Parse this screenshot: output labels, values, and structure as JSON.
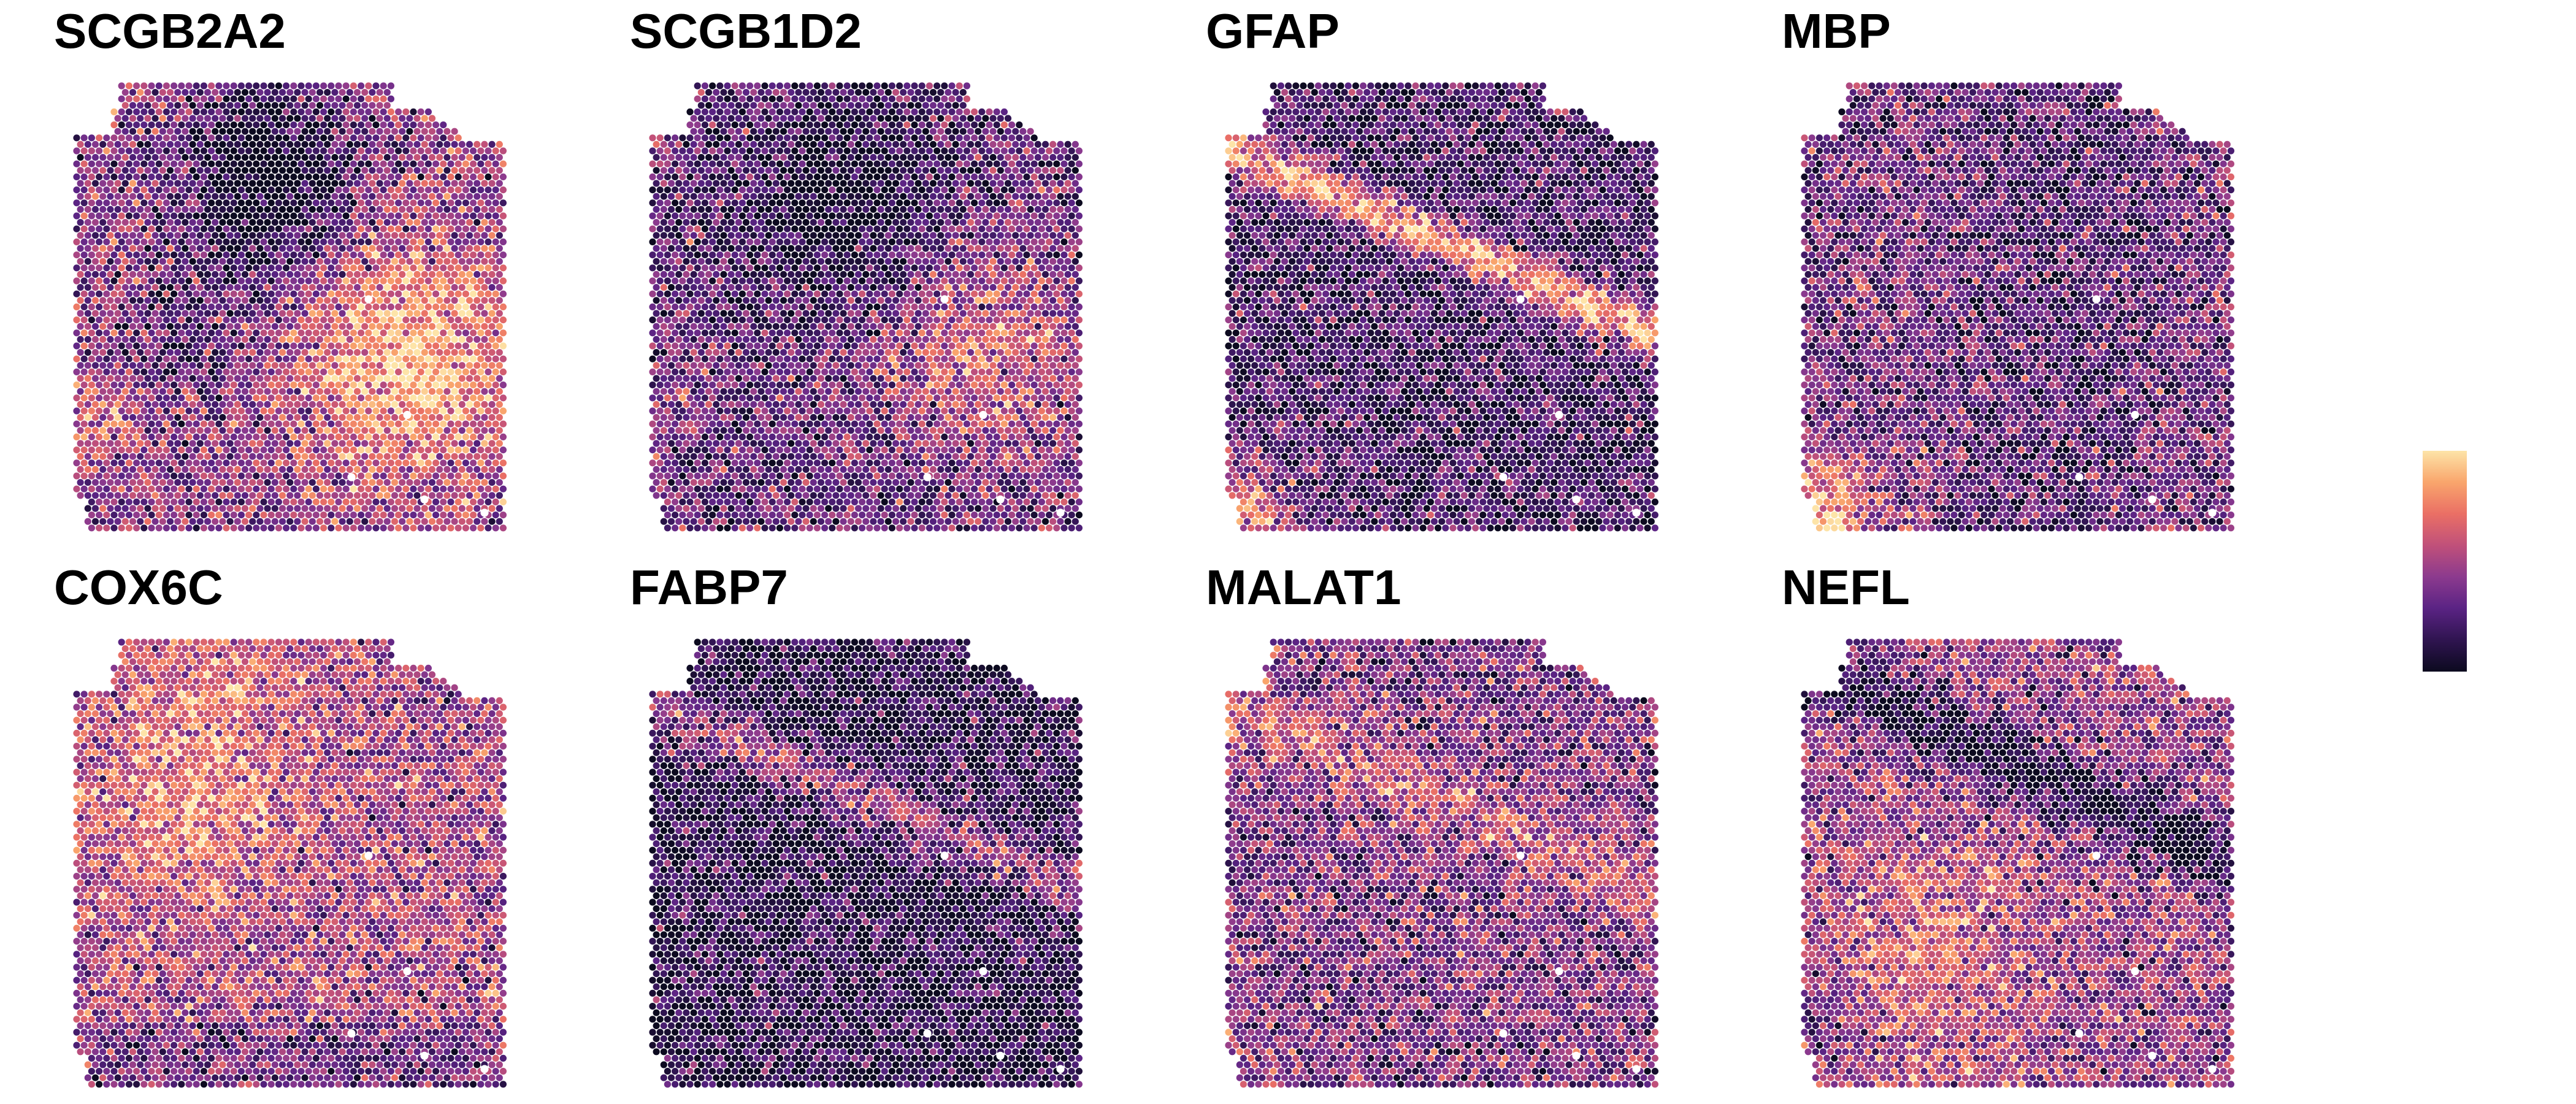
{
  "chart_data": {
    "type": "heatmap",
    "subtype": "spatial-spot-expression-facets",
    "layout": {
      "rows": 2,
      "cols": 4
    },
    "colormap": [
      "#0c0a1f",
      "#2f1450",
      "#5a2384",
      "#8c3a8e",
      "#c0507a",
      "#ea6f65",
      "#f9a56c",
      "#fde4a8"
    ],
    "colorbar": {
      "orientation": "vertical",
      "ticks": "none"
    },
    "value_scale": "relative expression 0-1 (unlabeled)",
    "panels": [
      {
        "title": "SCGB2A2",
        "pattern": "High in lower-right and lower-left regions; low dark band across the upper area."
      },
      {
        "title": "SCGB1D2",
        "pattern": "Moderate in lower-right region; dark across upper-middle area."
      },
      {
        "title": "GFAP",
        "pattern": "Bright diagonal band from upper-left to right; bright lower-left corner."
      },
      {
        "title": "MBP",
        "pattern": "Mostly low-moderate; bright lower-left corner."
      },
      {
        "title": "COX6C",
        "pattern": "Broadly moderate-high, highest in upper-left and middle-left areas."
      },
      {
        "title": "FABP7",
        "pattern": "Mostly dark with a sparse speckled diagonal band upper-left to right."
      },
      {
        "title": "MALAT1",
        "pattern": "Moderate overall with a diagonal brighter band upper-left to right."
      },
      {
        "title": "NEFL",
        "pattern": "Dark diagonal band upper-left to right; brighter lower-left and lower-middle."
      }
    ]
  }
}
